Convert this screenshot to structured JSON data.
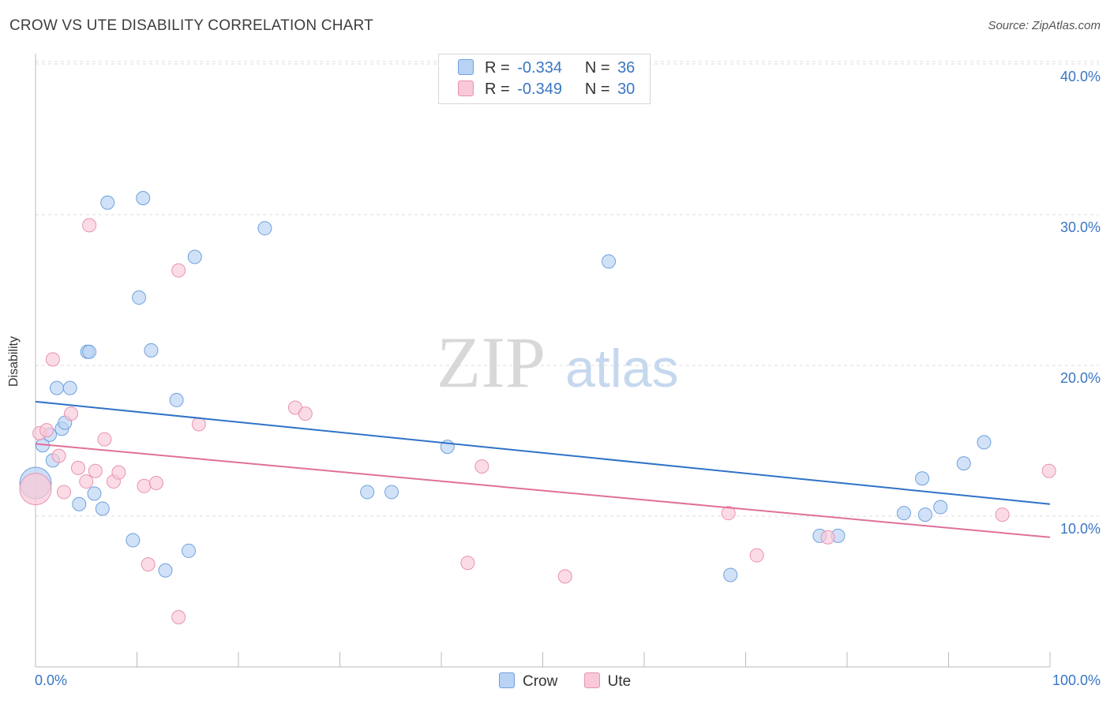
{
  "header": {
    "title": "CROW VS UTE DISABILITY CORRELATION CHART",
    "source": "Source: ZipAtlas.com"
  },
  "watermark": {
    "zip": "ZIP",
    "atlas": "atlas"
  },
  "legend": {
    "crow": {
      "r_label": "R =",
      "r_value": "-0.334",
      "n_label": "N =",
      "n_value": "36"
    },
    "ute": {
      "r_label": "R =",
      "r_value": "-0.349",
      "n_label": "N =",
      "n_value": "30"
    }
  },
  "bottom_legend": {
    "crow": "Crow",
    "ute": "Ute"
  },
  "axes": {
    "ylabel": "Disability",
    "x_min_label": "0.0%",
    "x_max_label": "100.0%",
    "y_ticks": [
      "10.0%",
      "20.0%",
      "30.0%",
      "40.0%"
    ]
  },
  "colors": {
    "crow_fill": "#b9d3f4",
    "crow_stroke": "#6fa0dc",
    "crow_line": "#2f72c8",
    "ute_fill": "#f9c9d8",
    "ute_stroke": "#e893b0",
    "ute_line": "#e0709a",
    "grid": "#dddddd",
    "tick_label": "#3a76c4"
  },
  "chart_data": {
    "type": "scatter",
    "title": "CROW VS UTE DISABILITY CORRELATION CHART",
    "xlabel": "",
    "ylabel": "Disability",
    "xlim": [
      0,
      100
    ],
    "ylim": [
      0,
      42
    ],
    "grid": true,
    "legend_placement": "top-center",
    "series": [
      {
        "name": "Crow",
        "r": -0.334,
        "n": 36,
        "trend": [
          [
            0,
            17.6
          ],
          [
            100,
            10.8
          ]
        ],
        "points": [
          [
            0,
            12.2
          ],
          [
            0.7,
            14.7
          ],
          [
            1.4,
            15.4
          ],
          [
            1.7,
            13.7
          ],
          [
            2.1,
            18.5
          ],
          [
            2.6,
            15.8
          ],
          [
            2.9,
            16.2
          ],
          [
            3.4,
            18.5
          ],
          [
            4.3,
            10.8
          ],
          [
            5.1,
            20.9
          ],
          [
            5.3,
            20.9
          ],
          [
            5.8,
            11.5
          ],
          [
            6.6,
            10.5
          ],
          [
            7.1,
            30.8
          ],
          [
            9.6,
            8.4
          ],
          [
            10.2,
            24.5
          ],
          [
            10.6,
            31.1
          ],
          [
            11.4,
            21.0
          ],
          [
            12.8,
            6.4
          ],
          [
            13.9,
            17.7
          ],
          [
            15.1,
            7.7
          ],
          [
            15.7,
            27.2
          ],
          [
            22.6,
            29.1
          ],
          [
            32.7,
            11.6
          ],
          [
            35.1,
            11.6
          ],
          [
            40.6,
            14.6
          ],
          [
            56.5,
            26.9
          ],
          [
            68.5,
            6.1
          ],
          [
            77.3,
            8.7
          ],
          [
            79.1,
            8.7
          ],
          [
            85.6,
            10.2
          ],
          [
            87.4,
            12.5
          ],
          [
            87.7,
            10.1
          ],
          [
            89.2,
            10.6
          ],
          [
            91.5,
            13.5
          ],
          [
            93.5,
            14.9
          ]
        ]
      },
      {
        "name": "Ute",
        "r": -0.349,
        "n": 30,
        "trend": [
          [
            0,
            14.8
          ],
          [
            100,
            8.6
          ]
        ],
        "points": [
          [
            0,
            11.8
          ],
          [
            0.4,
            15.5
          ],
          [
            1.1,
            15.7
          ],
          [
            1.7,
            20.4
          ],
          [
            2.3,
            14.0
          ],
          [
            2.8,
            11.6
          ],
          [
            3.5,
            16.8
          ],
          [
            4.2,
            13.2
          ],
          [
            5.0,
            12.3
          ],
          [
            5.3,
            29.3
          ],
          [
            5.9,
            13.0
          ],
          [
            6.8,
            15.1
          ],
          [
            7.7,
            12.3
          ],
          [
            8.2,
            12.9
          ],
          [
            10.7,
            12.0
          ],
          [
            11.1,
            6.8
          ],
          [
            11.9,
            12.2
          ],
          [
            14.1,
            3.3
          ],
          [
            14.1,
            26.3
          ],
          [
            16.1,
            16.1
          ],
          [
            25.6,
            17.2
          ],
          [
            26.6,
            16.8
          ],
          [
            42.6,
            6.9
          ],
          [
            44.0,
            13.3
          ],
          [
            52.2,
            6.0
          ],
          [
            68.3,
            10.2
          ],
          [
            71.1,
            7.4
          ],
          [
            78.1,
            8.6
          ],
          [
            95.3,
            10.1
          ],
          [
            99.9,
            13.0
          ]
        ]
      }
    ]
  }
}
